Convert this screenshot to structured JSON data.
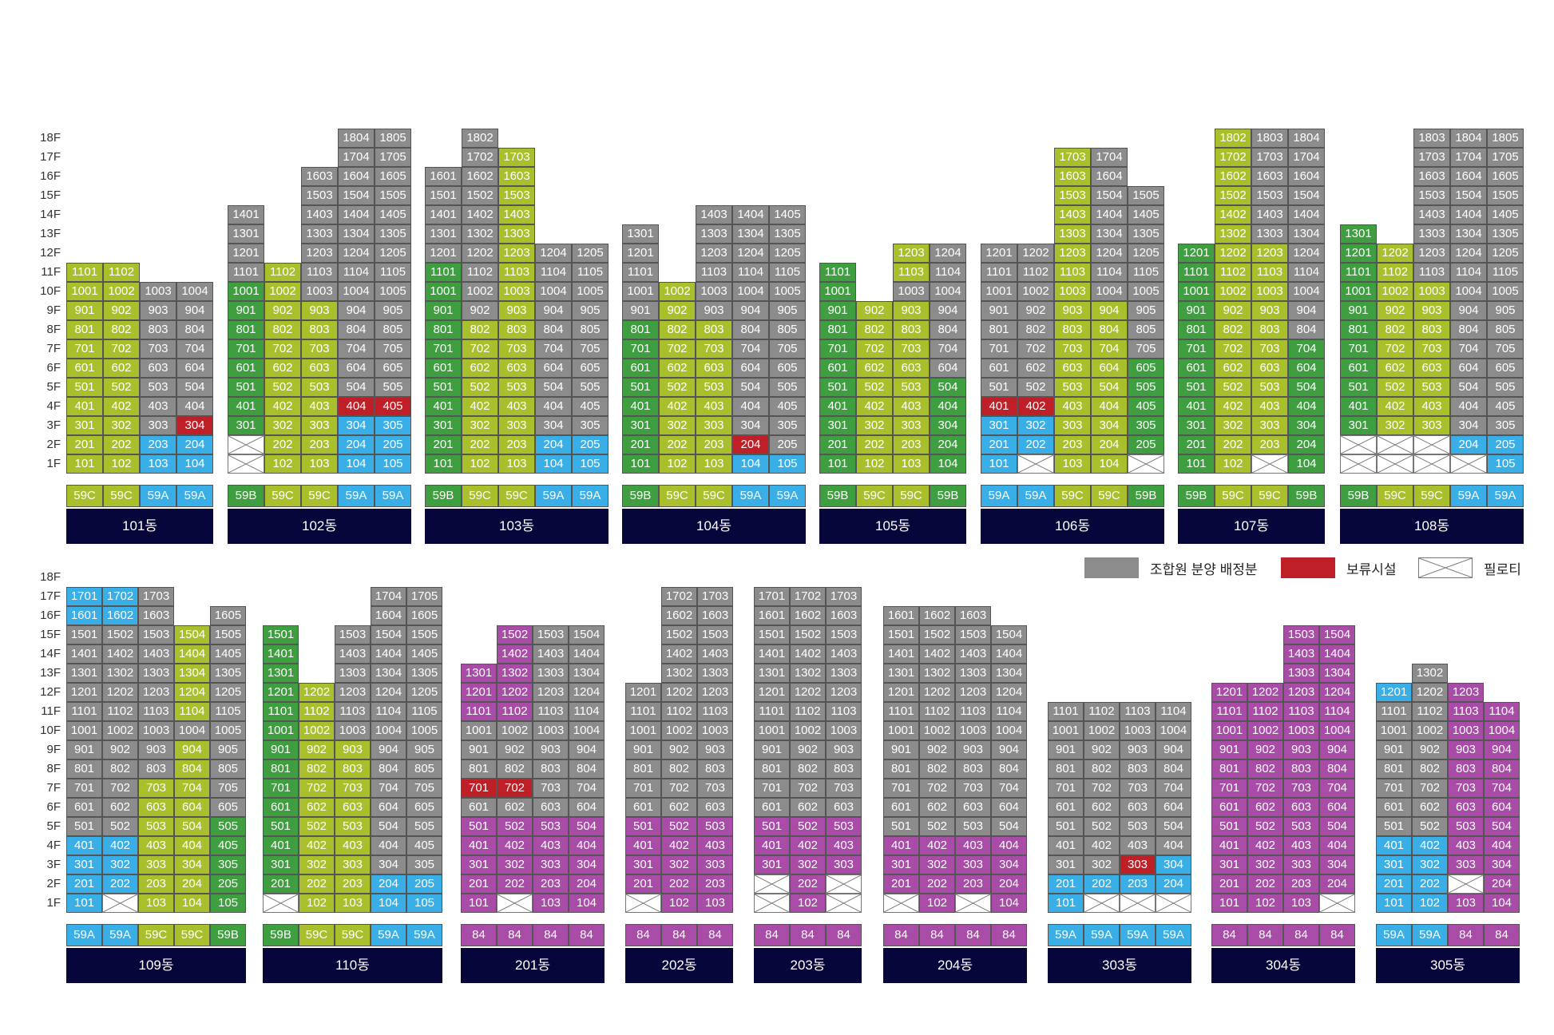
{
  "colors": {
    "gray": "#8c8c8c",
    "lime": "#a9bf2c",
    "green": "#3f9e3f",
    "blue": "#3aaee6",
    "red": "#bf1f26",
    "purple": "#a84ca8",
    "navy": "#06063b"
  },
  "codes": {
    "G": "gray",
    "L": "lime",
    "N": "green",
    "B": "blue",
    "R": "red",
    "P": "purple",
    "X": "pilotis"
  },
  "type_codes": {
    "59A": "blue",
    "59B": "green",
    "59C": "lime",
    "84": "purple"
  },
  "floor_labels": [
    "18F",
    "17F",
    "16F",
    "15F",
    "14F",
    "13F",
    "12F",
    "11F",
    "10F",
    "9F",
    "8F",
    "7F",
    "6F",
    "5F",
    "4F",
    "3F",
    "2F",
    "1F"
  ],
  "legend": [
    {
      "color": "gray",
      "label": "조합원 분양 배정분"
    },
    {
      "color": "red",
      "label": "보류시설"
    },
    {
      "color": "pilotis",
      "label": "필로티"
    }
  ],
  "buildings": [
    {
      "name": "101동",
      "row": 0,
      "types": [
        "59C",
        "59C",
        "59A",
        "59A"
      ],
      "floors": {
        "11": "LL..",
        "10": "LLGG",
        "9": "LLGG",
        "8": "LLGG",
        "7": "LLGG",
        "6": "LLGG",
        "5": "LLGG",
        "4": "LLGG",
        "3": "LLGR",
        "2": "LLBB",
        "1": "LLBB"
      }
    },
    {
      "name": "102동",
      "row": 0,
      "types": [
        "59B",
        "59C",
        "59C",
        "59A",
        "59A"
      ],
      "floors": {
        "18": "...GG",
        "17": "...GG",
        "16": "..GGG",
        "15": "..GGG",
        "14": "G.GGG",
        "13": "G.GGG",
        "12": "G.GGG",
        "11": "GLGGG",
        "10": "NLGGG",
        "9": "NLLGG",
        "8": "NLLGG",
        "7": "NLLGG",
        "6": "NLLGG",
        "5": "NLLGG",
        "4": "NLLRR",
        "3": "NLLBB",
        "2": "XLLBB",
        "1": "XLLBB"
      }
    },
    {
      "name": "103동",
      "row": 0,
      "types": [
        "59B",
        "59C",
        "59C",
        "59A",
        "59A"
      ],
      "floors": {
        "18": ".G...",
        "17": ".GL..",
        "16": "GGL..",
        "15": "GGL..",
        "14": "GGL..",
        "13": "GGL..",
        "12": "GGLGG",
        "11": "NGLGG",
        "10": "NGLGG",
        "9": "NGLGG",
        "8": "NLLGG",
        "7": "NLLGG",
        "6": "NLLGG",
        "5": "NLLGG",
        "4": "NLLGG",
        "3": "NLLGG",
        "2": "NLLBB",
        "1": "NLLBB"
      }
    },
    {
      "name": "104동",
      "row": 0,
      "types": [
        "59B",
        "59C",
        "59C",
        "59A",
        "59A"
      ],
      "floors": {
        "14": "..GGG",
        "13": "G.GGG",
        "12": "G.GGG",
        "11": "G.GGG",
        "10": "GLGGG",
        "9": "GLGGG",
        "8": "NLLGG",
        "7": "NLLGG",
        "6": "NLLGG",
        "5": "NLLGG",
        "4": "NLLGG",
        "3": "NLLGG",
        "2": "NLLRG",
        "1": "NLLBB"
      }
    },
    {
      "name": "105동",
      "row": 0,
      "types": [
        "59B",
        "59C",
        "59C",
        "59B"
      ],
      "floors": {
        "12": "..LG",
        "11": "N.LG",
        "10": "N.GG",
        "9": "NLLG",
        "8": "NLLG",
        "7": "NLLG",
        "6": "NLLG",
        "5": "NLLN",
        "4": "NLLN",
        "3": "NLLN",
        "2": "NLLN",
        "1": "NLLN"
      }
    },
    {
      "name": "106동",
      "row": 0,
      "types": [
        "59A",
        "59A",
        "59C",
        "59C",
        "59B"
      ],
      "floors": {
        "17": "..LG.",
        "16": "..LG.",
        "15": "..LGG",
        "14": "..LGG",
        "13": "..LGG",
        "12": "GGLGG",
        "11": "GGLGG",
        "10": "GGLGG",
        "9": "GGLLG",
        "8": "GGLLG",
        "7": "GGLLG",
        "6": "GGLLN",
        "5": "GGLLN",
        "4": "RRLLN",
        "3": "BBLLN",
        "2": "BBLLN",
        "1": "BXLLX"
      }
    },
    {
      "name": "107동",
      "row": 0,
      "types": [
        "59B",
        "59C",
        "59C",
        "59B"
      ],
      "floors": {
        "18": ".LGG",
        "17": ".LGG",
        "16": ".LGG",
        "15": ".LGG",
        "14": ".LGG",
        "13": ".LGG",
        "12": "NLLG",
        "11": "NLLG",
        "10": "NLLG",
        "9": "NLLG",
        "8": "NLLG",
        "7": "NLLN",
        "6": "NLLN",
        "5": "NLLN",
        "4": "NLLN",
        "3": "NLLN",
        "2": "NLLN",
        "1": "NLXN"
      }
    },
    {
      "name": "108동",
      "row": 0,
      "types": [
        "59B",
        "59C",
        "59C",
        "59A",
        "59A"
      ],
      "floors": {
        "18": "..GGG",
        "17": "..GGG",
        "16": "..GGG",
        "15": "..GGG",
        "14": "..GGG",
        "13": "N.GGG",
        "12": "NLGGG",
        "11": "NLGGG",
        "10": "NLLGG",
        "9": "NLLGG",
        "8": "NLLGG",
        "7": "NLLGG",
        "6": "NLLGG",
        "5": "NLLGG",
        "4": "NLLGG",
        "3": "NLLGG",
        "2": "XXXBB",
        "1": "XXXXB"
      }
    },
    {
      "name": "109동",
      "row": 1,
      "types": [
        "59A",
        "59A",
        "59C",
        "59C",
        "59B"
      ],
      "floors": {
        "17": "BBG..",
        "16": "BBG.G",
        "15": "GGGLG",
        "14": "GGGLG",
        "13": "GGGLG",
        "12": "GGGLG",
        "11": "GGGLG",
        "10": "GGGGG",
        "9": "GGGLG",
        "8": "GGGLG",
        "7": "GGLLG",
        "6": "GGLLG",
        "5": "GGLLN",
        "4": "BBLLN",
        "3": "BBLLN",
        "2": "BBLLN",
        "1": "BXLLN"
      }
    },
    {
      "name": "110동",
      "row": 1,
      "types": [
        "59B",
        "59C",
        "59C",
        "59A",
        "59A"
      ],
      "floors": {
        "17": "...GG",
        "16": "...GG",
        "15": "N.GGG",
        "14": "N.GGG",
        "13": "N.GGG",
        "12": "NLGGG",
        "11": "NLGGG",
        "10": "NLGGG",
        "9": "NLLGG",
        "8": "NLLGG",
        "7": "NLLGG",
        "6": "NLLGG",
        "5": "NLLGG",
        "4": "NLLGG",
        "3": "NLLGG",
        "2": "NLLBB",
        "1": "XLLBB"
      }
    },
    {
      "name": "201동",
      "row": 1,
      "types": [
        "84",
        "84",
        "84",
        "84"
      ],
      "floors": {
        "15": ".PGG",
        "14": ".PGG",
        "13": "PPGG",
        "12": "PPGG",
        "11": "PPGG",
        "10": "GGGG",
        "9": "GGGG",
        "8": "GGGG",
        "7": "RRGG",
        "6": "GGGG",
        "5": "PPPP",
        "4": "PPPP",
        "3": "PPPP",
        "2": "PPPP",
        "1": "PXPP"
      }
    },
    {
      "name": "202동",
      "row": 1,
      "types": [
        "84",
        "84",
        "84"
      ],
      "floors": {
        "17": ".GG",
        "16": ".GG",
        "15": ".GG",
        "14": ".GG",
        "13": ".GG",
        "12": "GGG",
        "11": "GGG",
        "10": "GGG",
        "9": "GGG",
        "8": "GGG",
        "7": "GGG",
        "6": "GGG",
        "5": "PPP",
        "4": "PPP",
        "3": "PPP",
        "2": "PPP",
        "1": "XPP"
      }
    },
    {
      "name": "203동",
      "row": 1,
      "types": [
        "84",
        "84",
        "84"
      ],
      "floors": {
        "17": "GGG",
        "16": "GGG",
        "15": "GGG",
        "14": "GGG",
        "13": "GGG",
        "12": "GGG",
        "11": "GGG",
        "10": "GGG",
        "9": "GGG",
        "8": "GGG",
        "7": "GGG",
        "6": "GGG",
        "5": "PPP",
        "4": "PPP",
        "3": "PPP",
        "2": "XPX",
        "1": "XPX"
      }
    },
    {
      "name": "204동",
      "row": 1,
      "types": [
        "84",
        "84",
        "84",
        "84"
      ],
      "floors": {
        "16": "GGG.",
        "15": "GGGG",
        "14": "GGGG",
        "13": "GGGG",
        "12": "GGGG",
        "11": "GGGG",
        "10": "GGGG",
        "9": "GGGG",
        "8": "GGGG",
        "7": "GGGG",
        "6": "GGGG",
        "5": "GGGG",
        "4": "PPPP",
        "3": "PPPP",
        "2": "PPPP",
        "1": "XPXP"
      }
    },
    {
      "name": "303동",
      "row": 1,
      "types": [
        "59A",
        "59A",
        "59A",
        "59A"
      ],
      "floors": {
        "11": "GGGG",
        "10": "GGGG",
        "9": "GGGG",
        "8": "GGGG",
        "7": "GGGG",
        "6": "GGGG",
        "5": "GGGG",
        "4": "GGGG",
        "3": "GGRB",
        "2": "BBBB",
        "1": "BXXX"
      }
    },
    {
      "name": "304동",
      "row": 1,
      "types": [
        "84",
        "84",
        "84",
        "84"
      ],
      "floors": {
        "15": "..PP",
        "14": "..PP",
        "13": "..PP",
        "12": "PPPP",
        "11": "PPPP",
        "10": "PPPP",
        "9": "PPPP",
        "8": "PPPP",
        "7": "PPPP",
        "6": "PPPP",
        "5": "PPPP",
        "4": "PPPP",
        "3": "PPPP",
        "2": "PPPP",
        "1": "PPPX"
      }
    },
    {
      "name": "305동",
      "row": 1,
      "types": [
        "59A",
        "59A",
        "84",
        "84"
      ],
      "floors": {
        "13": ".G..",
        "12": "BGP.",
        "11": "GGPP",
        "10": "GGPP",
        "9": "GGPP",
        "8": "GGPP",
        "7": "GGPP",
        "6": "GGPP",
        "5": "GGPP",
        "4": "BBPP",
        "3": "BBPP",
        "2": "BBXP",
        "1": "BBPP"
      }
    }
  ]
}
